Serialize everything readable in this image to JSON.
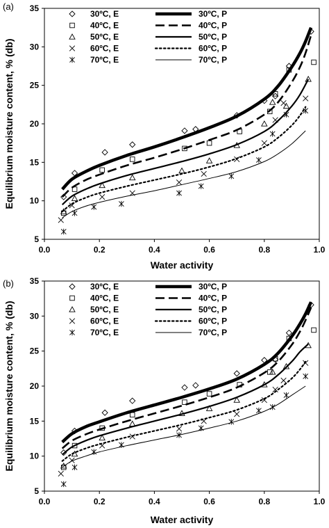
{
  "chart_data": [
    {
      "panel_label": "(a)",
      "type": "scatter",
      "xlabel": "Water activity",
      "ylabel": "Equilibrium moisture content, % (db)",
      "xlim": [
        0,
        1
      ],
      "ylim": [
        5,
        35
      ],
      "xticks": [
        "0.0",
        "0.2",
        "0.4",
        "0.6",
        "0.8",
        "1.0"
      ],
      "yticks": [
        "5",
        "10",
        "15",
        "20",
        "25",
        "30",
        "35"
      ],
      "legend_position": "top-left",
      "series": [
        {
          "name": "30ºC, E",
          "kind": "points",
          "marker": "diamond",
          "x": [
            0.07,
            0.11,
            0.22,
            0.32,
            0.51,
            0.55,
            0.7,
            0.8,
            0.84,
            0.89,
            0.97
          ],
          "y": [
            10.5,
            13.6,
            16.3,
            17.3,
            19.1,
            19.3,
            21.1,
            23.0,
            23.6,
            27.5,
            32.0
          ]
        },
        {
          "name": "40ºC, E",
          "kind": "points",
          "marker": "square",
          "x": [
            0.07,
            0.11,
            0.21,
            0.32,
            0.51,
            0.6,
            0.71,
            0.82,
            0.84,
            0.89,
            0.98
          ],
          "y": [
            8.4,
            11.5,
            14.0,
            15.4,
            16.8,
            17.5,
            19.0,
            21.6,
            23.9,
            27.0,
            28.0
          ]
        },
        {
          "name": "50ºC, E",
          "kind": "points",
          "marker": "triangle",
          "x": [
            0.07,
            0.11,
            0.21,
            0.32,
            0.5,
            0.6,
            0.7,
            0.8,
            0.83,
            0.88,
            0.96
          ],
          "y": [
            8.6,
            10.3,
            12.0,
            13.0,
            13.9,
            15.2,
            17.2,
            20.0,
            22.8,
            22.3,
            25.8
          ]
        },
        {
          "name": "60ºC, E",
          "kind": "points",
          "marker": "x",
          "x": [
            0.06,
            0.1,
            0.21,
            0.32,
            0.49,
            0.58,
            0.7,
            0.8,
            0.84,
            0.87,
            0.95
          ],
          "y": [
            7.5,
            9.4,
            10.5,
            11.0,
            12.4,
            13.5,
            15.4,
            17.5,
            20.5,
            22.7,
            23.3
          ]
        },
        {
          "name": "70ºC, E",
          "kind": "points",
          "marker": "asterisk",
          "x": [
            0.07,
            0.11,
            0.18,
            0.28,
            0.49,
            0.57,
            0.68,
            0.78,
            0.83,
            0.88,
            0.95
          ],
          "y": [
            6.0,
            8.4,
            9.2,
            9.6,
            11.0,
            11.9,
            13.2,
            15.3,
            18.7,
            21.2,
            21.7
          ]
        },
        {
          "name": "30ºC, P",
          "kind": "line",
          "style": "thick",
          "x": [
            0.065,
            0.1,
            0.15,
            0.2,
            0.3,
            0.4,
            0.5,
            0.6,
            0.7,
            0.8,
            0.85,
            0.9,
            0.93,
            0.95,
            0.97
          ],
          "y": [
            11.5,
            12.8,
            13.8,
            14.6,
            15.9,
            17.0,
            18.2,
            19.5,
            21.0,
            23.2,
            24.9,
            27.4,
            29.2,
            30.7,
            32.5
          ]
        },
        {
          "name": "40ºC, P",
          "kind": "line",
          "style": "dashed",
          "x": [
            0.065,
            0.1,
            0.15,
            0.2,
            0.3,
            0.4,
            0.5,
            0.6,
            0.7,
            0.8,
            0.85,
            0.9,
            0.93,
            0.95,
            0.97
          ],
          "y": [
            10.5,
            11.7,
            12.7,
            13.4,
            14.6,
            15.6,
            16.7,
            17.9,
            19.2,
            21.2,
            22.8,
            25.4,
            27.4,
            29.2,
            31.5
          ]
        },
        {
          "name": "50ºC, P",
          "kind": "line",
          "style": "solid",
          "x": [
            0.065,
            0.1,
            0.15,
            0.2,
            0.3,
            0.4,
            0.5,
            0.6,
            0.7,
            0.8,
            0.85,
            0.9,
            0.93,
            0.96
          ],
          "y": [
            9.5,
            10.6,
            11.5,
            12.2,
            13.3,
            14.2,
            15.1,
            16.1,
            17.3,
            19.0,
            20.4,
            22.3,
            23.8,
            25.8
          ]
        },
        {
          "name": "60ºC, P",
          "kind": "line",
          "style": "dotted",
          "x": [
            0.065,
            0.1,
            0.15,
            0.2,
            0.3,
            0.4,
            0.5,
            0.6,
            0.7,
            0.8,
            0.85,
            0.9,
            0.93,
            0.95
          ],
          "y": [
            8.6,
            9.6,
            10.4,
            11.0,
            11.9,
            12.7,
            13.5,
            14.4,
            15.5,
            17.0,
            18.2,
            19.8,
            21.1,
            22.2
          ]
        },
        {
          "name": "70ºC, P",
          "kind": "line",
          "style": "thin",
          "x": [
            0.065,
            0.1,
            0.15,
            0.2,
            0.3,
            0.4,
            0.5,
            0.6,
            0.7,
            0.8,
            0.85,
            0.9,
            0.95
          ],
          "y": [
            7.8,
            8.6,
            9.3,
            9.8,
            10.6,
            11.3,
            12.1,
            12.9,
            13.8,
            15.1,
            16.1,
            17.4,
            19.1
          ]
        }
      ]
    },
    {
      "panel_label": "(b)",
      "type": "scatter",
      "xlabel": "Water activity",
      "ylabel": "Equilibrium moisture content, % (db)",
      "xlim": [
        0,
        1
      ],
      "ylim": [
        5,
        35
      ],
      "xticks": [
        "0.0",
        "0.2",
        "0.4",
        "0.6",
        "0.8",
        "1.0"
      ],
      "yticks": [
        "5",
        "10",
        "15",
        "20",
        "25",
        "30",
        "35"
      ],
      "legend_position": "top-left",
      "series": [
        {
          "name": "30ºC, E",
          "kind": "points",
          "marker": "diamond",
          "x": [
            0.07,
            0.11,
            0.22,
            0.32,
            0.51,
            0.55,
            0.7,
            0.8,
            0.84,
            0.89,
            0.97
          ],
          "y": [
            10.5,
            13.6,
            16.2,
            17.9,
            19.8,
            20.1,
            21.8,
            23.7,
            23.8,
            27.6,
            31.6
          ]
        },
        {
          "name": "40ºC, E",
          "kind": "points",
          "marker": "square",
          "x": [
            0.07,
            0.11,
            0.21,
            0.32,
            0.51,
            0.6,
            0.71,
            0.82,
            0.84,
            0.89,
            0.98
          ],
          "y": [
            8.4,
            11.5,
            14.0,
            15.9,
            17.7,
            18.9,
            20.2,
            22.0,
            23.9,
            26.8,
            28.0
          ]
        },
        {
          "name": "50ºC, E",
          "kind": "points",
          "marker": "triangle",
          "x": [
            0.07,
            0.11,
            0.21,
            0.32,
            0.5,
            0.6,
            0.7,
            0.8,
            0.83,
            0.88,
            0.96
          ],
          "y": [
            8.6,
            10.3,
            12.6,
            14.6,
            16.1,
            16.8,
            18.0,
            20.2,
            22.0,
            22.8,
            25.8
          ]
        },
        {
          "name": "60ºC, E",
          "kind": "points",
          "marker": "x",
          "x": [
            0.06,
            0.1,
            0.21,
            0.32,
            0.49,
            0.58,
            0.7,
            0.8,
            0.84,
            0.87,
            0.95
          ],
          "y": [
            7.5,
            9.4,
            11.5,
            12.8,
            13.9,
            15.0,
            16.0,
            18.0,
            19.5,
            20.8,
            23.3
          ]
        },
        {
          "name": "70ºC, E",
          "kind": "points",
          "marker": "asterisk",
          "x": [
            0.07,
            0.11,
            0.18,
            0.28,
            0.49,
            0.57,
            0.68,
            0.78,
            0.83,
            0.88,
            0.95
          ],
          "y": [
            6.0,
            8.4,
            10.6,
            11.6,
            13.0,
            14.0,
            14.9,
            16.5,
            17.0,
            18.7,
            21.4
          ]
        },
        {
          "name": "30ºC, P",
          "kind": "line",
          "style": "thick",
          "x": [
            0.065,
            0.1,
            0.15,
            0.2,
            0.3,
            0.4,
            0.5,
            0.6,
            0.7,
            0.8,
            0.85,
            0.9,
            0.93,
            0.95,
            0.97
          ],
          "y": [
            12.0,
            13.2,
            14.2,
            14.9,
            16.2,
            17.3,
            18.4,
            19.6,
            21.0,
            23.1,
            24.7,
            27.1,
            28.9,
            30.3,
            32.0
          ]
        },
        {
          "name": "40ºC, P",
          "kind": "line",
          "style": "dashed",
          "x": [
            0.065,
            0.1,
            0.15,
            0.2,
            0.3,
            0.4,
            0.5,
            0.6,
            0.7,
            0.8,
            0.85,
            0.9,
            0.93,
            0.95,
            0.97
          ],
          "y": [
            11.1,
            12.2,
            13.1,
            13.8,
            15.0,
            16.1,
            17.2,
            18.4,
            19.8,
            21.9,
            23.5,
            25.9,
            27.8,
            29.4,
            31.2
          ]
        },
        {
          "name": "50ºC, P",
          "kind": "line",
          "style": "solid",
          "x": [
            0.065,
            0.1,
            0.15,
            0.2,
            0.3,
            0.4,
            0.5,
            0.6,
            0.7,
            0.8,
            0.85,
            0.9,
            0.93,
            0.96
          ],
          "y": [
            10.2,
            11.3,
            12.2,
            12.9,
            14.0,
            15.0,
            16.0,
            17.1,
            18.4,
            20.2,
            21.6,
            23.5,
            24.9,
            26.0
          ]
        },
        {
          "name": "60ºC, P",
          "kind": "line",
          "style": "dotted",
          "x": [
            0.065,
            0.1,
            0.15,
            0.2,
            0.3,
            0.4,
            0.5,
            0.6,
            0.7,
            0.8,
            0.85,
            0.9,
            0.93,
            0.95
          ],
          "y": [
            9.3,
            10.3,
            11.1,
            11.7,
            12.7,
            13.6,
            14.5,
            15.5,
            16.6,
            18.2,
            19.5,
            21.1,
            22.4,
            23.5
          ]
        },
        {
          "name": "70ºC, P",
          "kind": "line",
          "style": "thin",
          "x": [
            0.065,
            0.1,
            0.15,
            0.2,
            0.3,
            0.4,
            0.5,
            0.6,
            0.7,
            0.8,
            0.85,
            0.9,
            0.95
          ],
          "y": [
            8.4,
            9.3,
            10.0,
            10.6,
            11.5,
            12.3,
            13.1,
            14.0,
            15.0,
            16.4,
            17.4,
            18.7,
            20.0
          ]
        }
      ]
    }
  ]
}
